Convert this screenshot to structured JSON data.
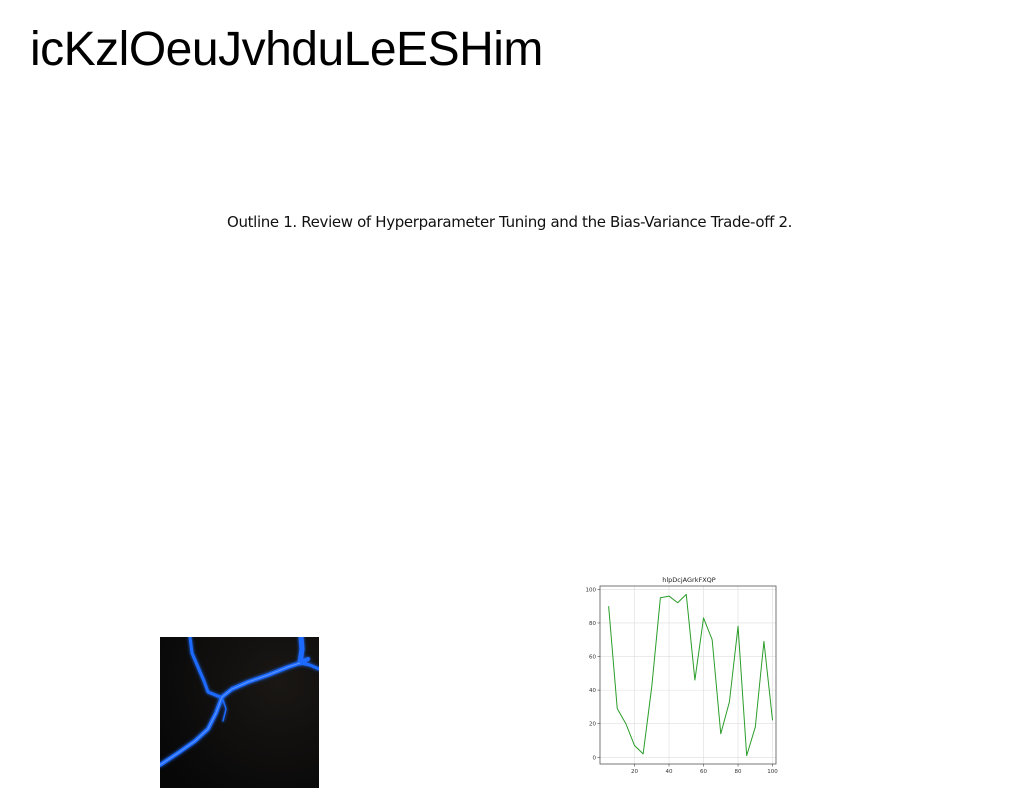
{
  "slide": {
    "title": "icKzlOeuJvhduLeESHim",
    "outline_text": "Outline 1. Review of Hyperparameter Tuning and the Bias-Variance Trade-off 2."
  },
  "photo": {
    "subject": "dark image with glowing blue branching cracks",
    "colors": {
      "background": "#0b0b0c",
      "glow": "#1f6bff"
    }
  },
  "chart_data": {
    "type": "line",
    "title": "hlpDcjAGrkFXQP",
    "xlabel": "",
    "ylabel": "",
    "xlim": [
      0,
      102
    ],
    "ylim": [
      -4,
      102
    ],
    "xticks": [
      20,
      40,
      60,
      80,
      100
    ],
    "yticks": [
      0,
      20,
      40,
      60,
      80,
      100
    ],
    "grid": true,
    "series": [
      {
        "color": "#2a9d2a",
        "x": [
          5,
          10,
          15,
          20,
          25,
          30,
          35,
          40,
          45,
          50,
          55,
          60,
          65,
          70,
          75,
          80,
          85,
          90,
          95,
          100
        ],
        "y": [
          90,
          29,
          20,
          7,
          2,
          42,
          95,
          96,
          92,
          97,
          46,
          83,
          70,
          14,
          33,
          78,
          1,
          18,
          69,
          22
        ]
      }
    ]
  }
}
